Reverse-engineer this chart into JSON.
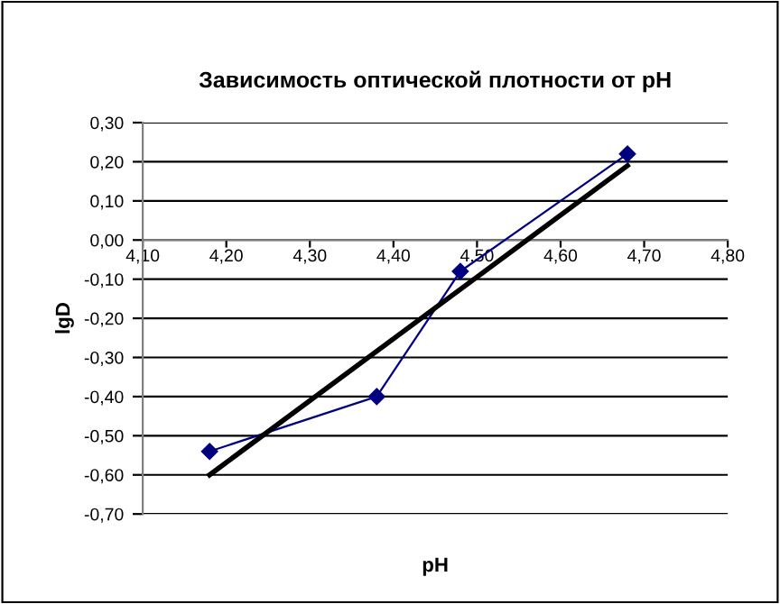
{
  "chart_data": {
    "type": "line",
    "title": "Зависимость оптической плотности от pH",
    "xlabel": "pH",
    "ylabel": "lgD",
    "series": [
      {
        "color": "#000080",
        "marker": "diamond",
        "x": [
          4.18,
          4.38,
          4.48,
          4.68
        ],
        "values": [
          -0.54,
          -0.4,
          -0.08,
          0.22
        ]
      },
      {
        "type": "line",
        "color": "#000000",
        "marker": "none",
        "x": [
          4.18,
          4.68
        ],
        "values": [
          -0.6,
          0.19
        ]
      }
    ],
    "xlim": [
      4.1,
      4.8
    ],
    "ylim": [
      -0.7,
      0.3
    ],
    "xticks": [
      {
        "value": 4.1,
        "label": "4,10"
      },
      {
        "value": 4.2,
        "label": "4,20"
      },
      {
        "value": 4.3,
        "label": "4,30"
      },
      {
        "value": 4.4,
        "label": "4,40"
      },
      {
        "value": 4.5,
        "label": "4,50"
      },
      {
        "value": 4.6,
        "label": "4,60"
      },
      {
        "value": 4.7,
        "label": "4,70"
      },
      {
        "value": 4.8,
        "label": "4,80"
      }
    ],
    "yticks": [
      {
        "value": 0.3,
        "label": "0,30"
      },
      {
        "value": 0.2,
        "label": "0,20"
      },
      {
        "value": 0.1,
        "label": "0,10"
      },
      {
        "value": 0,
        "label": "0,00"
      },
      {
        "value": -0.1,
        "label": "-0,10"
      },
      {
        "value": -0.2,
        "label": "-0,20"
      },
      {
        "value": -0.3,
        "label": "-0,30"
      },
      {
        "value": -0.4,
        "label": "-0,40"
      },
      {
        "value": -0.5,
        "label": "-0,50"
      },
      {
        "value": -0.6,
        "label": "-0,60"
      },
      {
        "value": -0.7,
        "label": "-0,70"
      }
    ],
    "grid": "y",
    "legend": false
  }
}
